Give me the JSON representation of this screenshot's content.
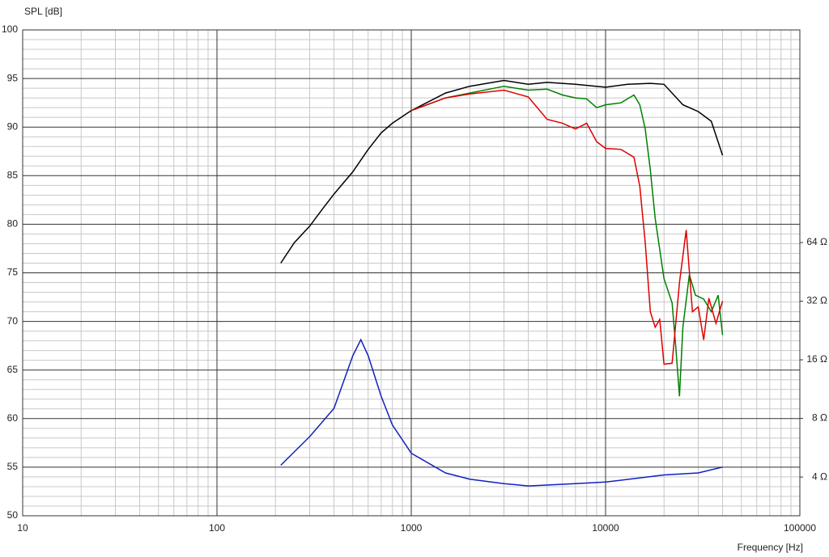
{
  "chart_data": {
    "type": "line",
    "y_label": "SPL [dB]",
    "x_label": "Frequency [Hz]",
    "xscale": "log",
    "y2scale": "log",
    "grid": true,
    "minor_grid": true,
    "xlim": [
      10,
      100000
    ],
    "xticks": [
      10,
      100,
      1000,
      10000,
      100000
    ],
    "ylim": [
      50,
      100
    ],
    "yticks": [
      50,
      55,
      60,
      65,
      70,
      75,
      80,
      85,
      90,
      95,
      100
    ],
    "y2lim": [
      2.53,
      791
    ],
    "y2ticks": [
      {
        "value": 4,
        "label": "4 Ω"
      },
      {
        "value": 8,
        "label": "8 Ω"
      },
      {
        "value": 16,
        "label": "16 Ω"
      },
      {
        "value": 32,
        "label": "32 Ω"
      },
      {
        "value": 64,
        "label": "64 Ω"
      }
    ],
    "series": [
      {
        "color": "#000000",
        "x": [
          213,
          250,
          300,
          350,
          400,
          500,
          600,
          700,
          800,
          1000,
          1500,
          2000,
          3000,
          4000,
          5000,
          7000,
          10000,
          13000,
          17000,
          20000,
          25000,
          30000,
          35000,
          40000
        ],
        "values": [
          76,
          78.1,
          79.8,
          81.6,
          83.1,
          85.4,
          87.7,
          89.4,
          90.4,
          91.7,
          93.5,
          94.2,
          94.8,
          94.4,
          94.6,
          94.4,
          94.1,
          94.4,
          94.5,
          94.4,
          92.3,
          91.6,
          90.6,
          87.1
        ]
      },
      {
        "color": "#008000",
        "x": [
          1000,
          1500,
          2000,
          3000,
          4000,
          5000,
          6000,
          7000,
          8000,
          9000,
          10000,
          12000,
          14000,
          15000,
          16000,
          17000,
          18000,
          20000,
          22000,
          23000,
          24000,
          25000,
          27000,
          29000,
          32000,
          35000,
          38000,
          40000
        ],
        "values": [
          91.7,
          93.0,
          93.5,
          94.2,
          93.8,
          93.9,
          93.3,
          93.0,
          92.9,
          92.0,
          92.3,
          92.5,
          93.3,
          92.3,
          89.8,
          85.6,
          80.6,
          74.4,
          71.9,
          67.3,
          62.3,
          69.4,
          74.8,
          72.7,
          72.3,
          71.0,
          72.7,
          68.6
        ]
      },
      {
        "color": "#e00000",
        "x": [
          1000,
          1500,
          2000,
          3000,
          4000,
          5000,
          6000,
          7000,
          8000,
          9000,
          10000,
          12000,
          14000,
          15000,
          16000,
          17000,
          18000,
          19000,
          20000,
          22000,
          24000,
          26000,
          28000,
          30000,
          32000,
          34000,
          37000,
          40000
        ],
        "values": [
          91.7,
          93.0,
          93.4,
          93.8,
          93.1,
          90.8,
          90.4,
          89.8,
          90.4,
          88.5,
          87.8,
          87.7,
          86.9,
          83.9,
          78.1,
          71.0,
          69.4,
          70.2,
          65.6,
          65.7,
          74.0,
          79.4,
          71.0,
          71.5,
          68.1,
          72.4,
          69.8,
          72.1
        ]
      },
      {
        "color": "#1020c0",
        "axis": "y2",
        "x": [
          213,
          300,
          400,
          500,
          550,
          600,
          700,
          800,
          1000,
          1500,
          2000,
          3000,
          4000,
          7000,
          10000,
          20000,
          30000,
          40000
        ],
        "values": [
          4.6,
          6.45,
          9.0,
          16.8,
          20.3,
          16.8,
          10.4,
          7.4,
          5.3,
          4.2,
          3.9,
          3.7,
          3.6,
          3.7,
          3.77,
          4.1,
          4.2,
          4.5
        ]
      }
    ]
  }
}
